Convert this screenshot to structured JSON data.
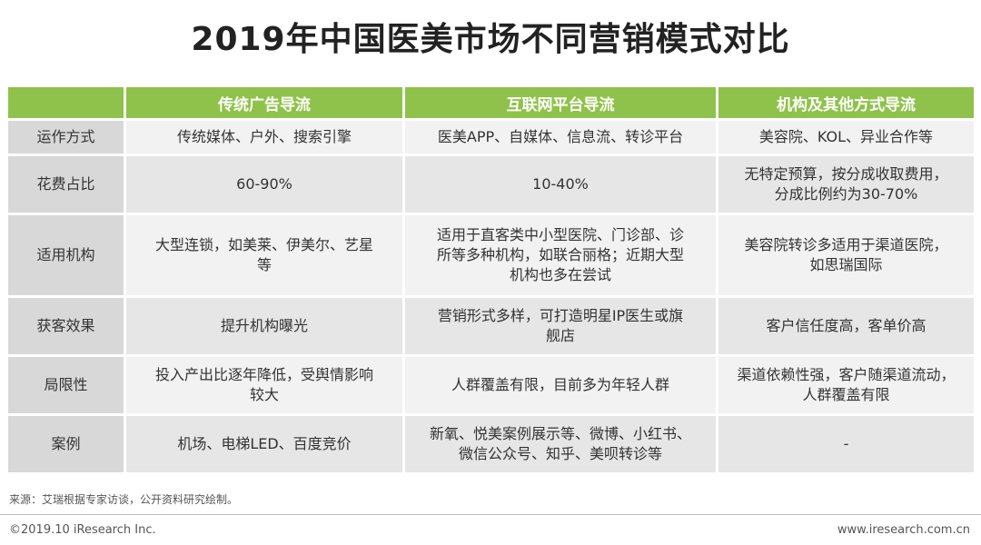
{
  "title": "2019年中国医美市场不同营销模式对比",
  "columns": [
    "",
    "传统广告导流",
    "互联网平台导流",
    "机构及其他方式导流"
  ],
  "rows": [
    {
      "label": "运作方式",
      "cells": [
        "传统媒体、户外、搜索引擎",
        "医美APP、自媒体、信息流、转诊平台",
        "美容院、KOL、异业合作等"
      ]
    },
    {
      "label": "花费占比",
      "cells": [
        "60-90%",
        "10-40%",
        "无特定预算，按分成收取费用，\n分成比例约为30-70%"
      ]
    },
    {
      "label": "适用机构",
      "cells": [
        "大型连锁，如美莱、伊美尔、艺星\n等",
        "适用于直客类中小型医院、门诊部、诊\n所等多种机构，如联合丽格；近期大型\n机构也多在尝试",
        "美容院转诊多适用于渠道医院，\n如思瑞国际"
      ]
    },
    {
      "label": "获客效果",
      "cells": [
        "提升机构曝光",
        "营销形式多样，可打造明星IP医生或旗\n舰店",
        "客户信任度高，客单价高"
      ]
    },
    {
      "label": "局限性",
      "cells": [
        "投入产出比逐年降低，受舆情影响\n较大",
        "人群覆盖有限，目前多为年轻人群",
        "渠道依赖性强，客户随渠道流动，\n人群覆盖有限"
      ]
    },
    {
      "label": "案例",
      "cells": [
        "机场、电梯LED、百度竞价",
        "新氧、悦美案例展示等、微博、小红书、\n微信公众号、知乎、美呗转诊等",
        "-"
      ]
    }
  ],
  "footer": {
    "source": "来源：艾瑞根据专家访谈，公开资料研究绘制。",
    "copyright": "©2019.10 iResearch Inc.",
    "website": "www.iresearch.com.cn"
  },
  "colors": {
    "header_green": "#8fc24a",
    "label_gray": "#d8d8d8",
    "row_light": "#f2f2f2",
    "row_dark": "#e6e6e6"
  }
}
